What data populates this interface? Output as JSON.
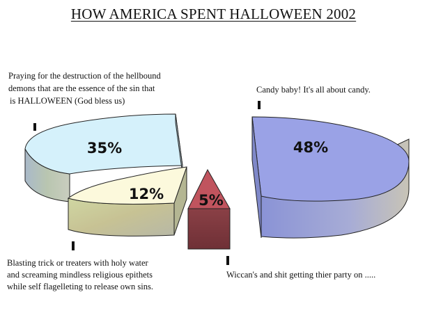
{
  "chart_data": {
    "type": "pie",
    "title": "HOW AMERICA SPENT HALLOWEEN 2002",
    "slices": [
      {
        "value": 48,
        "value_label": "48%",
        "label": "Candy baby! It's all about candy.",
        "color": "#9aa2e6"
      },
      {
        "value": 35,
        "value_label": "35%",
        "label_lines": [
          "Praying for the destruction of the hellbound",
          "demons that are the essence of the  sin that",
          "is HALLOWEEN (God bless us)"
        ],
        "color": "#d5f1fb"
      },
      {
        "value": 12,
        "value_label": "12%",
        "label_lines": [
          "Blasting trick or treaters with holy water",
          "and screaming mindless religious epithets",
          "while self flagelleting to release own sins."
        ],
        "color": "#fcf9dc"
      },
      {
        "value": 5,
        "value_label": "5%",
        "label": "Wiccan's and shit getting thier party on .....",
        "color": "#c0545e"
      }
    ],
    "style": "3d-exploded"
  }
}
